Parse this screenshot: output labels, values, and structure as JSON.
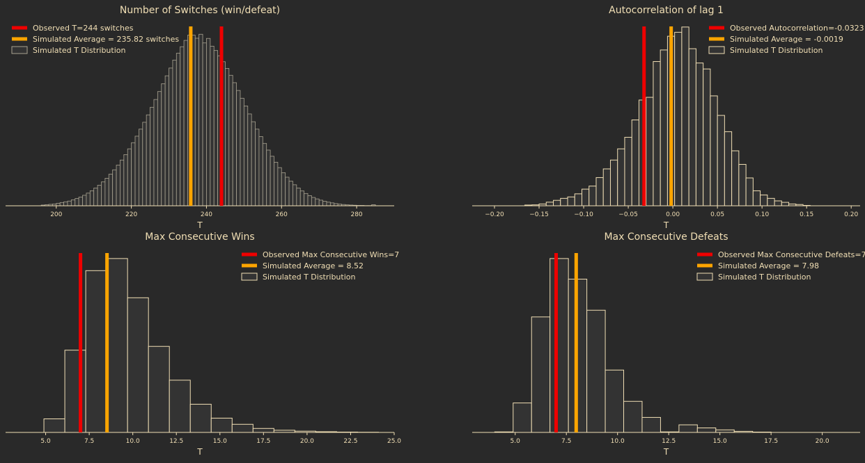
{
  "colors": {
    "background": "#292929",
    "text": "#f0deb4",
    "bar_fill": "#333333",
    "bar_edge": "#f0deb4",
    "bar_edge_dense": "#a8a290",
    "observed": "#ee0000",
    "average": "#ffa500"
  },
  "chart_data": [
    {
      "type": "bar",
      "title": "Number of Switches (win/defeat)",
      "xlabel": "T",
      "ylabel": "",
      "xlim": [
        186.5,
        290
      ],
      "ylim": [
        0,
        1.0
      ],
      "xticks": [
        200,
        220,
        240,
        260,
        280
      ],
      "tick_labels": [
        "200",
        "220",
        "240",
        "260",
        "280"
      ],
      "bin_width": 1,
      "bins_start": 196,
      "counts": [
        0.004,
        0.006,
        0.008,
        0.01,
        0.014,
        0.018,
        0.022,
        0.026,
        0.033,
        0.04,
        0.048,
        0.058,
        0.07,
        0.083,
        0.098,
        0.114,
        0.132,
        0.152,
        0.175,
        0.199,
        0.225,
        0.253,
        0.283,
        0.315,
        0.349,
        0.385,
        0.424,
        0.462,
        0.503,
        0.545,
        0.588,
        0.632,
        0.675,
        0.719,
        0.762,
        0.806,
        0.844,
        0.88,
        0.915,
        0.944,
        0.944,
        0.927,
        0.949,
        0.901,
        0.926,
        0.883,
        0.859,
        0.83,
        0.797,
        0.76,
        0.722,
        0.681,
        0.638,
        0.595,
        0.552,
        0.508,
        0.465,
        0.424,
        0.383,
        0.345,
        0.308,
        0.274,
        0.241,
        0.211,
        0.183,
        0.158,
        0.136,
        0.116,
        0.098,
        0.082,
        0.068,
        0.056,
        0.046,
        0.038,
        0.031,
        0.025,
        0.02,
        0.016,
        0.012,
        0.009,
        0.007,
        0.005,
        0.004,
        0.003,
        0.002,
        0.002,
        0.001,
        0.001,
        0.006
      ],
      "observed": 244,
      "average": 235.82,
      "legend": [
        "Observed T=244 switches",
        "Simulated Average = 235.82 switches",
        "Simulated T Distribution"
      ],
      "legend_position": "top-left",
      "dense": true
    },
    {
      "type": "bar",
      "title": "Autocorrelation of lag 1",
      "xlabel": "T",
      "ylabel": "",
      "xlim": [
        -0.225,
        0.21
      ],
      "ylim": [
        0,
        1.0
      ],
      "xticks": [
        -0.2,
        -0.15,
        -0.1,
        -0.05,
        0.0,
        0.05,
        0.1,
        0.15,
        0.2
      ],
      "tick_labels": [
        "−0.20",
        "−0.15",
        "−0.10",
        "−0.05",
        "0.00",
        "0.05",
        "0.10",
        "0.15",
        "0.20"
      ],
      "bin_width": 0.008,
      "bins_start": -0.166,
      "counts": [
        0.004,
        0.005,
        0.01,
        0.02,
        0.03,
        0.041,
        0.049,
        0.066,
        0.092,
        0.109,
        0.156,
        0.204,
        0.253,
        0.315,
        0.379,
        0.475,
        0.585,
        0.6,
        0.798,
        0.862,
        0.938,
        0.96,
        0.989,
        0.869,
        0.79,
        0.757,
        0.608,
        0.5,
        0.41,
        0.304,
        0.229,
        0.154,
        0.083,
        0.06,
        0.041,
        0.027,
        0.019,
        0.01,
        0.007,
        0.002
      ],
      "observed": -0.0323,
      "average": -0.0019,
      "legend": [
        "Observed Autocorrelation=-0.0323",
        "Simulated Average = -0.0019",
        "Simulated T Distribution"
      ],
      "legend_position": "top-right",
      "dense": false
    },
    {
      "type": "bar",
      "title": "Max Consecutive Wins",
      "xlabel": "T",
      "ylabel": "",
      "xlim": [
        2.7,
        25
      ],
      "ylim": [
        0,
        1.0
      ],
      "xticks": [
        5.0,
        7.5,
        10.0,
        12.5,
        15.0,
        17.5,
        20.0,
        22.5,
        25.0
      ],
      "tick_labels": [
        "5.0",
        "7.5",
        "10.0",
        "12.5",
        "15.0",
        "17.5",
        "20.0",
        "22.5",
        "25.0"
      ],
      "bin_width": 1.2,
      "bins_start": 4.9,
      "counts": [
        0.075,
        0.455,
        0.895,
        0.962,
        0.745,
        0.476,
        0.289,
        0.156,
        0.079,
        0.045,
        0.022,
        0.012,
        0.007,
        0.004,
        0.002,
        0.001,
        0.0,
        0.0
      ],
      "observed": 7,
      "average": 8.52,
      "legend": [
        "Observed Max Consecutive Wins=7",
        "Simulated Average = 8.52",
        "Simulated T Distribution"
      ],
      "legend_position": "top-right",
      "dense": false
    },
    {
      "type": "bar",
      "title": "Max Consecutive Defeats",
      "xlabel": "T",
      "ylabel": "",
      "xlim": [
        2.9,
        21.85
      ],
      "ylim": [
        0,
        1.0
      ],
      "xticks": [
        5.0,
        7.5,
        10.0,
        12.5,
        15.0,
        17.5,
        20.0
      ],
      "tick_labels": [
        "5.0",
        "7.5",
        "10.0",
        "12.5",
        "15.0",
        "17.5",
        "20.0"
      ],
      "bin_width": 0.9,
      "bins_start": 4.0,
      "counts": [
        0.003,
        0.163,
        0.639,
        0.962,
        0.848,
        0.676,
        0.345,
        0.172,
        0.083,
        0.003,
        0.042,
        0.025,
        0.014,
        0.006,
        0.002,
        0.0
      ],
      "observed": 7,
      "average": 7.98,
      "legend": [
        "Observed Max Consecutive Defeats=7",
        "Simulated Average = 7.98",
        "Simulated T Distribution"
      ],
      "legend_position": "top-right",
      "dense": false
    }
  ]
}
